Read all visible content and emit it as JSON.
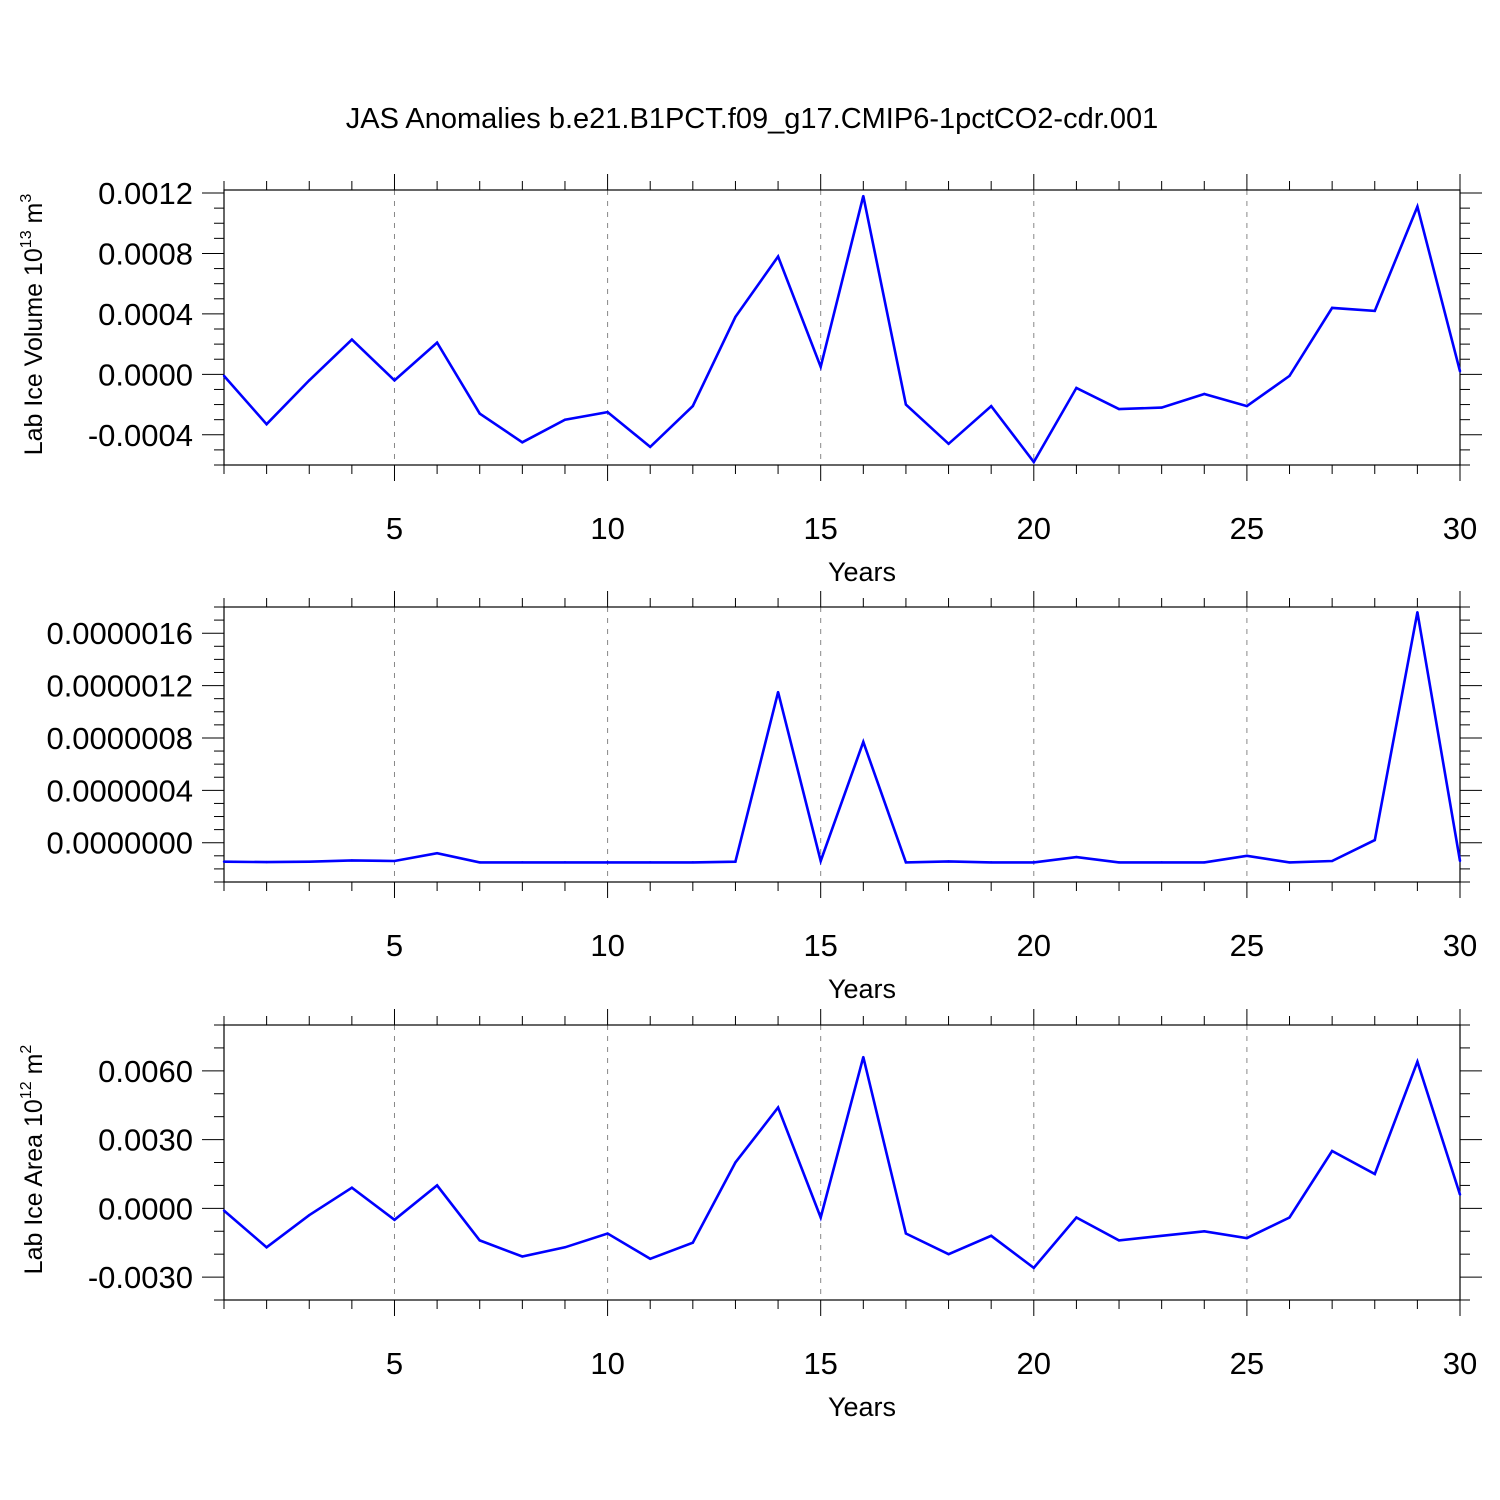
{
  "title": "JAS Anomalies b.e21.B1PCT.f09_g17.CMIP6-1pctCO2-cdr.001",
  "colors": {
    "line": "#0000ff",
    "axis": "#000000",
    "grid": "#888888"
  },
  "chart_data": [
    {
      "type": "line",
      "xlabel": "Years",
      "ylabel": "Lab Ice Volume 10",
      "ylabel_sup": "13",
      "ylabel_unit": " m",
      "ylabel_unit_sup": "3",
      "xlim": [
        1,
        30
      ],
      "ylim": [
        -0.0006,
        0.00122
      ],
      "xticks": [
        "5",
        "10",
        "15",
        "20",
        "25",
        "30"
      ],
      "xtick_values": [
        5,
        10,
        15,
        20,
        25,
        30
      ],
      "yticks": [
        "0.0012",
        "0.0008",
        "0.0004",
        "0.0000",
        "-0.0004"
      ],
      "ytick_values": [
        0.0012,
        0.0008,
        0.0004,
        0.0,
        -0.0004
      ],
      "y_minor_step": 0.0001,
      "grid": "vertical-dashed",
      "x": [
        1,
        2,
        3,
        4,
        5,
        6,
        7,
        8,
        9,
        10,
        11,
        12,
        13,
        14,
        15,
        16,
        17,
        18,
        19,
        20,
        21,
        22,
        23,
        24,
        25,
        26,
        27,
        28,
        29,
        30
      ],
      "values": [
        -1e-05,
        -0.00033,
        -4e-05,
        0.00023,
        -4e-05,
        0.00021,
        -0.00026,
        -0.00045,
        -0.0003,
        -0.00025,
        -0.00048,
        -0.00021,
        0.00038,
        0.00078,
        5e-05,
        0.00118,
        -0.0002,
        -0.00046,
        -0.00021,
        -0.00058,
        -9e-05,
        -0.00023,
        -0.00022,
        -0.00013,
        -0.00021,
        -1e-05,
        0.00044,
        0.00042,
        0.00111,
        2e-05
      ]
    },
    {
      "type": "line",
      "xlabel": "Years",
      "ylabel": "",
      "ylabel_sup": "",
      "ylabel_unit": "",
      "ylabel_unit_sup": "",
      "xlim": [
        1,
        30
      ],
      "ylim": [
        -3e-07,
        1.8e-06
      ],
      "xticks": [
        "5",
        "10",
        "15",
        "20",
        "25",
        "30"
      ],
      "xtick_values": [
        5,
        10,
        15,
        20,
        25,
        30
      ],
      "yticks": [
        "0.0000016",
        "0.0000012",
        "0.0000008",
        "0.0000004",
        "0.0000000"
      ],
      "ytick_values": [
        1.6e-06,
        1.2e-06,
        8e-07,
        4e-07,
        0.0
      ],
      "y_minor_step": 1e-07,
      "grid": "vertical-dashed",
      "x": [
        1,
        2,
        3,
        4,
        5,
        6,
        7,
        8,
        9,
        10,
        11,
        12,
        13,
        14,
        15,
        16,
        17,
        18,
        19,
        20,
        21,
        22,
        23,
        24,
        25,
        26,
        27,
        28,
        29,
        30
      ],
      "values": [
        -1.45e-07,
        -1.48e-07,
        -1.45e-07,
        -1.35e-07,
        -1.4e-07,
        -8e-08,
        -1.5e-07,
        -1.5e-07,
        -1.5e-07,
        -1.5e-07,
        -1.5e-07,
        -1.5e-07,
        -1.45e-07,
        1.15e-06,
        -1.4e-07,
        7.7e-07,
        -1.5e-07,
        -1.43e-07,
        -1.5e-07,
        -1.5e-07,
        -1.1e-07,
        -1.5e-07,
        -1.5e-07,
        -1.5e-07,
        -1e-07,
        -1.5e-07,
        -1.4e-07,
        2e-08,
        1.76e-06,
        -1.4e-07
      ]
    },
    {
      "type": "line",
      "xlabel": "Years",
      "ylabel": "Lab Ice Area 10",
      "ylabel_sup": "12",
      "ylabel_unit": " m",
      "ylabel_unit_sup": "2",
      "xlim": [
        1,
        30
      ],
      "ylim": [
        -0.004,
        0.008
      ],
      "xticks": [
        "5",
        "10",
        "15",
        "20",
        "25",
        "30"
      ],
      "xtick_values": [
        5,
        10,
        15,
        20,
        25,
        30
      ],
      "yticks": [
        "0.0060",
        "0.0030",
        "0.0000",
        "-0.0030"
      ],
      "ytick_values": [
        0.006,
        0.003,
        0.0,
        -0.003
      ],
      "y_minor_step": 0.001,
      "grid": "vertical-dashed",
      "x": [
        1,
        2,
        3,
        4,
        5,
        6,
        7,
        8,
        9,
        10,
        11,
        12,
        13,
        14,
        15,
        16,
        17,
        18,
        19,
        20,
        21,
        22,
        23,
        24,
        25,
        26,
        27,
        28,
        29,
        30
      ],
      "values": [
        -0.0001,
        -0.0017,
        -0.0003,
        0.0009,
        -0.0005,
        0.001,
        -0.0014,
        -0.0021,
        -0.0017,
        -0.0011,
        -0.0022,
        -0.0015,
        0.002,
        0.0044,
        -0.0004,
        0.0066,
        -0.0011,
        -0.002,
        -0.0012,
        -0.0026,
        -0.0004,
        -0.0014,
        -0.0012,
        -0.001,
        -0.0013,
        -0.0004,
        0.0025,
        0.0015,
        0.0064,
        0.0006
      ]
    }
  ]
}
